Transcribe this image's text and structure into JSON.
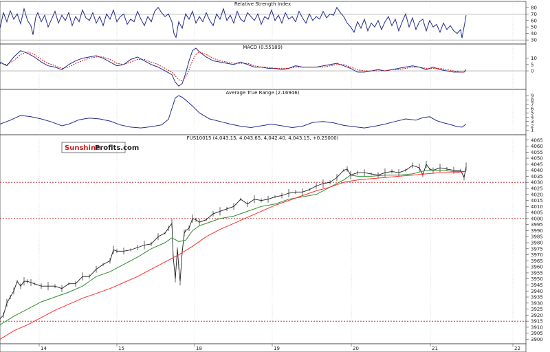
{
  "colors": {
    "price": "#1a1a1a",
    "ma_fast": "#2e8b2e",
    "ma_slow": "#ff2a2a",
    "indicator": "#1f2a8c",
    "signal": "#cc1111",
    "support": "#b01818",
    "grid": "#bbbbbb",
    "logo_red": "#cc1f1f",
    "logo_dark": "#222222"
  },
  "logo": {
    "part1": "Sunshine",
    "part2": "Profits.com"
  },
  "x_axis": {
    "tick_labels": [
      "14",
      "15",
      "18",
      "19",
      "20",
      "21",
      "22"
    ]
  },
  "chart_data": [
    {
      "type": "line",
      "name": "rsi",
      "title": "Relative Strength Index",
      "y_ticks": [
        30,
        40,
        50,
        60,
        70,
        80
      ],
      "ylim": [
        27,
        83
      ],
      "reference_lines": [
        30,
        70
      ],
      "series": [
        {
          "x": [
            0,
            5,
            10,
            15,
            20,
            25,
            30,
            35,
            40,
            45,
            48,
            52,
            55,
            60,
            65,
            70,
            75,
            80,
            85,
            90,
            95,
            100,
            105,
            110,
            115,
            120,
            125,
            130,
            135,
            140,
            145,
            150,
            155,
            160,
            165,
            170,
            175,
            180,
            185,
            190,
            195,
            200,
            205,
            210,
            215,
            220,
            225,
            230,
            235,
            240,
            245,
            250,
            253,
            256,
            260,
            265,
            270,
            275,
            280,
            285,
            290,
            295,
            300,
            305,
            310,
            315,
            320,
            325,
            330,
            335,
            340,
            345,
            350,
            355,
            360,
            365,
            370,
            375,
            380,
            385,
            390,
            395,
            400,
            405,
            410,
            415,
            420,
            425,
            430,
            435,
            440,
            445,
            450,
            455,
            460,
            465,
            470,
            475,
            480,
            485,
            490,
            495,
            500,
            505,
            510,
            515,
            520,
            525,
            530,
            535,
            540,
            545,
            550,
            555,
            560,
            565,
            570,
            575,
            580,
            585,
            590,
            595,
            600,
            605,
            610,
            615,
            620,
            625,
            630,
            635,
            640,
            645,
            650,
            655,
            660,
            665,
            670,
            672,
            675,
            678
          ],
          "values": [
            48,
            72,
            58,
            75,
            62,
            70,
            55,
            78,
            60,
            52,
            38,
            65,
            72,
            58,
            68,
            50,
            62,
            74,
            56,
            68,
            60,
            72,
            52,
            66,
            58,
            76,
            64,
            60,
            72,
            56,
            66,
            52,
            70,
            62,
            76,
            58,
            66,
            70,
            54,
            62,
            58,
            74,
            62,
            52,
            66,
            58,
            74,
            80,
            72,
            66,
            70,
            58,
            40,
            34,
            58,
            48,
            70,
            62,
            74,
            56,
            66,
            58,
            72,
            60,
            52,
            70,
            62,
            78,
            60,
            68,
            56,
            74,
            62,
            58,
            72,
            66,
            60,
            70,
            54,
            66,
            62,
            76,
            60,
            68,
            56,
            72,
            62,
            66,
            58,
            74,
            64,
            56,
            70,
            60,
            66,
            62,
            74,
            64,
            70,
            68,
            80,
            72,
            66,
            56,
            50,
            42,
            58,
            48,
            62,
            44,
            56,
            50,
            60,
            46,
            58,
            66,
            52,
            62,
            44,
            58,
            70,
            50,
            64,
            46,
            58,
            62,
            44,
            60,
            50,
            54,
            42,
            56,
            46,
            52,
            44,
            40,
            46,
            33,
            50,
            68
          ]
        }
      ]
    },
    {
      "type": "line",
      "name": "macd",
      "title": "MACD (0.55189)",
      "y_ticks": [
        0,
        5,
        10
      ],
      "ylim": [
        -13,
        18
      ],
      "reference_lines": [
        0
      ],
      "series": [
        {
          "color_key": "indicator",
          "x": [
            0,
            10,
            20,
            30,
            40,
            50,
            60,
            70,
            80,
            90,
            100,
            110,
            120,
            130,
            140,
            150,
            160,
            170,
            180,
            190,
            200,
            210,
            220,
            230,
            240,
            250,
            255,
            260,
            265,
            270,
            275,
            280,
            285,
            290,
            300,
            310,
            320,
            330,
            340,
            350,
            360,
            370,
            380,
            390,
            400,
            410,
            420,
            430,
            440,
            450,
            460,
            470,
            480,
            490,
            500,
            510,
            520,
            530,
            540,
            550,
            560,
            570,
            580,
            590,
            600,
            610,
            620,
            630,
            640,
            650,
            660,
            670,
            675,
            678
          ],
          "values": [
            7,
            4,
            11,
            16,
            14,
            11,
            7,
            4,
            3,
            1,
            5,
            8,
            10,
            11,
            12,
            10,
            7,
            4,
            5,
            9,
            11,
            8,
            5,
            3,
            0,
            -3,
            -9,
            -12,
            -10,
            -2,
            8,
            16,
            18,
            15,
            11,
            8,
            7,
            6,
            5,
            7,
            5,
            3,
            3,
            2,
            2,
            1,
            2,
            4,
            3,
            3,
            3,
            4,
            5,
            6,
            4,
            2,
            -1,
            -1,
            0,
            1,
            0,
            1,
            2,
            3,
            4,
            3,
            1,
            3,
            1,
            0,
            -1,
            -1,
            -1,
            1
          ]
        },
        {
          "color_key": "signal",
          "x": [
            0,
            10,
            20,
            30,
            40,
            50,
            60,
            70,
            80,
            90,
            100,
            110,
            120,
            130,
            140,
            150,
            160,
            170,
            180,
            190,
            200,
            210,
            220,
            230,
            240,
            250,
            255,
            260,
            265,
            270,
            275,
            280,
            285,
            290,
            300,
            310,
            320,
            330,
            340,
            350,
            360,
            370,
            380,
            390,
            400,
            410,
            420,
            430,
            440,
            450,
            460,
            470,
            480,
            490,
            500,
            510,
            520,
            530,
            540,
            550,
            560,
            570,
            580,
            590,
            600,
            610,
            620,
            630,
            640,
            650,
            660,
            670,
            675,
            678
          ],
          "values": [
            6,
            5,
            8,
            13,
            15,
            13,
            9,
            6,
            4,
            2,
            3,
            6,
            8,
            10,
            11,
            11,
            9,
            6,
            5,
            7,
            9,
            9,
            7,
            5,
            2,
            -1,
            -4,
            -7,
            -8,
            -5,
            1,
            8,
            13,
            15,
            13,
            10,
            8,
            7,
            6,
            6,
            6,
            4,
            3,
            3,
            2,
            2,
            2,
            3,
            3,
            3,
            3,
            3,
            4,
            5,
            5,
            3,
            1,
            0,
            0,
            0,
            0,
            1,
            1,
            2,
            3,
            3,
            2,
            2,
            2,
            1,
            0,
            -1,
            -1,
            0
          ]
        }
      ]
    },
    {
      "type": "line",
      "name": "atr",
      "title": "Average True Range (2.16946)",
      "y_ticks": [
        1,
        2,
        3,
        4,
        5,
        6,
        7,
        8,
        9
      ],
      "ylim": [
        0.4,
        9.5
      ],
      "series": [
        {
          "color_key": "indicator",
          "x": [
            0,
            15,
            30,
            45,
            60,
            75,
            90,
            100,
            115,
            130,
            145,
            160,
            175,
            190,
            205,
            220,
            235,
            245,
            250,
            255,
            260,
            265,
            270,
            280,
            290,
            305,
            320,
            335,
            350,
            365,
            380,
            395,
            410,
            425,
            440,
            455,
            470,
            485,
            500,
            515,
            530,
            545,
            560,
            575,
            590,
            605,
            615,
            625,
            635,
            645,
            655,
            665,
            672,
            678
          ],
          "values": [
            2.4,
            3.3,
            4.4,
            4.1,
            3.6,
            2.9,
            2.0,
            2.4,
            3.4,
            3.8,
            3.6,
            3.1,
            2.2,
            1.7,
            1.5,
            1.8,
            2.2,
            3.5,
            6.0,
            8.5,
            9.0,
            8.6,
            8.0,
            6.6,
            5.0,
            3.6,
            3.0,
            2.4,
            1.9,
            1.6,
            2.0,
            2.4,
            2.0,
            1.6,
            1.9,
            2.8,
            3.0,
            2.7,
            2.1,
            1.8,
            1.5,
            1.9,
            2.4,
            3.0,
            3.6,
            3.3,
            3.9,
            4.1,
            3.2,
            2.7,
            2.3,
            1.8,
            1.7,
            2.4
          ]
        }
      ]
    },
    {
      "type": "line",
      "name": "price",
      "title": "FUS10015 (4,043.15, 4,043.65, 4,042.40, 4,043.15, +0.25000)",
      "y_ticks": [
        3900,
        3905,
        3910,
        3915,
        3920,
        3925,
        3930,
        3935,
        3940,
        3945,
        3950,
        3955,
        3960,
        3965,
        3970,
        3975,
        3980,
        3985,
        3990,
        3995,
        4000,
        4005,
        4010,
        4015,
        4020,
        4025,
        4030,
        4035,
        4040,
        4045,
        4050,
        4055,
        4060,
        4065
      ],
      "ylim": [
        3898,
        4066
      ],
      "support_levels": [
        4030,
        4000,
        3915
      ],
      "series": [
        {
          "color_key": "price",
          "x": [
            0,
            5,
            10,
            15,
            20,
            25,
            30,
            35,
            40,
            45,
            50,
            60,
            70,
            80,
            90,
            100,
            110,
            120,
            130,
            140,
            150,
            160,
            165,
            170,
            180,
            190,
            200,
            210,
            220,
            230,
            240,
            245,
            250,
            252,
            255,
            258,
            260,
            262,
            265,
            268,
            270,
            275,
            280,
            285,
            290,
            300,
            310,
            320,
            330,
            340,
            350,
            360,
            370,
            380,
            390,
            400,
            410,
            420,
            430,
            440,
            450,
            460,
            470,
            480,
            490,
            500,
            505,
            510,
            520,
            530,
            540,
            550,
            560,
            570,
            580,
            590,
            600,
            610,
            615,
            620,
            625,
            630,
            640,
            650,
            660,
            670,
            675,
            678
          ],
          "values": [
            3917,
            3920,
            3930,
            3935,
            3940,
            3948,
            3944,
            3948,
            3948,
            3947,
            3946,
            3944,
            3944,
            3944,
            3942,
            3946,
            3946,
            3952,
            3952,
            3958,
            3962,
            3965,
            3974,
            3973,
            3973,
            3974,
            3976,
            3978,
            3979,
            3985,
            3988,
            3992,
            3996,
            3968,
            3950,
            3975,
            3960,
            3948,
            3972,
            3988,
            3990,
            3992,
            4000,
            3999,
            3997,
            3999,
            4004,
            4006,
            4008,
            4010,
            4016,
            4012,
            4016,
            4015,
            4016,
            4018,
            4019,
            4021,
            4022,
            4022,
            4024,
            4027,
            4029,
            4030,
            4034,
            4040,
            4041,
            4036,
            4038,
            4038,
            4037,
            4036,
            4038,
            4039,
            4038,
            4040,
            4044,
            4042,
            4036,
            4045,
            4041,
            4040,
            4042,
            4041,
            4040,
            4040,
            4034,
            4043
          ]
        },
        {
          "color_key": "ma_fast",
          "x": [
            0,
            20,
            40,
            60,
            80,
            100,
            120,
            140,
            160,
            180,
            200,
            220,
            240,
            250,
            260,
            270,
            280,
            290,
            300,
            320,
            340,
            360,
            380,
            400,
            420,
            440,
            460,
            480,
            500,
            510,
            520,
            540,
            560,
            580,
            600,
            620,
            640,
            660,
            678
          ],
          "values": [
            3912,
            3919,
            3925,
            3931,
            3935,
            3939,
            3944,
            3952,
            3956,
            3962,
            3968,
            3975,
            3980,
            3984,
            3981,
            3982,
            3990,
            3994,
            3996,
            4000,
            4002,
            4006,
            4010,
            4012,
            4016,
            4018,
            4020,
            4026,
            4032,
            4036,
            4035,
            4035,
            4036,
            4036,
            4037,
            4040,
            4040,
            4039,
            4039
          ]
        },
        {
          "color_key": "ma_slow",
          "x": [
            0,
            20,
            40,
            60,
            80,
            100,
            120,
            140,
            160,
            180,
            200,
            220,
            240,
            260,
            280,
            300,
            320,
            340,
            360,
            380,
            400,
            420,
            440,
            460,
            480,
            500,
            520,
            540,
            560,
            580,
            600,
            620,
            640,
            660,
            678
          ],
          "values": [
            3900,
            3907,
            3912,
            3918,
            3924,
            3929,
            3934,
            3938,
            3942,
            3947,
            3952,
            3958,
            3964,
            3970,
            3977,
            3985,
            3991,
            3996,
            4001,
            4006,
            4011,
            4015,
            4019,
            4023,
            4026,
            4030,
            4032,
            4033,
            4034,
            4035,
            4036,
            4037,
            4038,
            4038,
            4039
          ]
        }
      ]
    }
  ]
}
